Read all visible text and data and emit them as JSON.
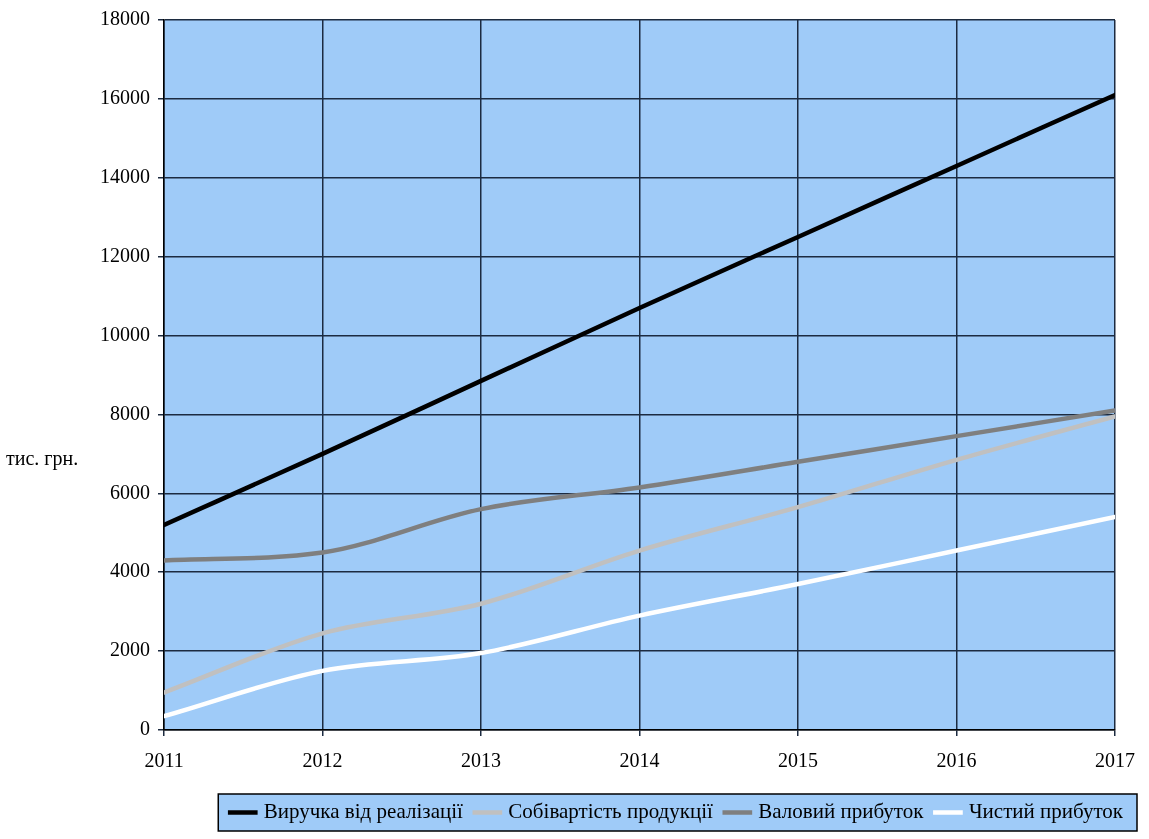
{
  "chart_data": {
    "type": "line",
    "ylabel": "тис. грн.",
    "x": [
      2011,
      2012,
      2013,
      2014,
      2015,
      2016,
      2017
    ],
    "xlim": [
      2011,
      2017
    ],
    "xticks": [
      2011,
      2012,
      2013,
      2014,
      2015,
      2016,
      2017
    ],
    "ylim": [
      0,
      18000
    ],
    "yticks": [
      0,
      2000,
      4000,
      6000,
      8000,
      10000,
      12000,
      14000,
      16000,
      18000
    ],
    "grid": true,
    "legend": "bottom",
    "marker": "none",
    "line_style": "solid",
    "series": [
      {
        "name": "Виручка від реалізації",
        "color": "#000000",
        "values": [
          5200,
          7000,
          8850,
          10700,
          12500,
          14300,
          16100
        ]
      },
      {
        "name": "Собівартість продукції",
        "color": "#c0c0c0",
        "values": [
          950,
          2450,
          3200,
          4550,
          5650,
          6850,
          7950
        ]
      },
      {
        "name": "Валовий прибуток",
        "color": "#7f7f7f",
        "values": [
          4300,
          4500,
          5600,
          6150,
          6800,
          7450,
          8100
        ]
      },
      {
        "name": "Чистий прибуток",
        "color": "#ffffff",
        "values": [
          350,
          1500,
          1950,
          2900,
          3700,
          4550,
          5400
        ]
      }
    ]
  }
}
